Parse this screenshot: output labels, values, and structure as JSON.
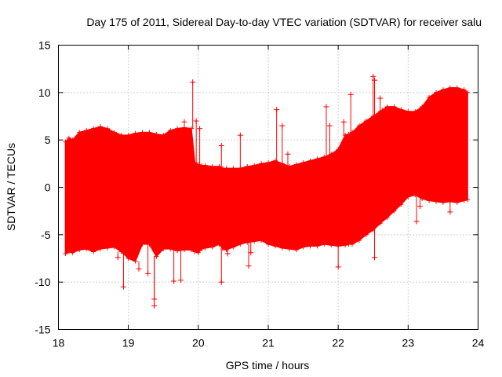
{
  "chart_data": {
    "type": "scatter",
    "title": "Day 175 of 2011, Sidereal Day-to-day VTEC variation (SDTVAR) for receiver salu",
    "xlabel": "GPS time / hours",
    "ylabel": "SDTVAR / TECUs",
    "xlim": [
      18,
      24
    ],
    "ylim": [
      -15,
      15
    ],
    "xticks": [
      "18",
      "19",
      "20",
      "21",
      "22",
      "23",
      "24"
    ],
    "yticks": [
      "-15",
      "-10",
      "-5",
      "0",
      "5",
      "10",
      "15"
    ],
    "grid": true,
    "legend": "none",
    "marker": "plus",
    "color": "#ff0000",
    "series": [
      {
        "name": "SDTVAR",
        "x": [
          18.1,
          18.15,
          18.2,
          18.3,
          18.4,
          18.5,
          18.6,
          18.7,
          18.8,
          18.9,
          19.0,
          19.1,
          19.2,
          19.3,
          19.4,
          19.5,
          19.6,
          19.7,
          19.8,
          19.9,
          19.95,
          20.0,
          20.05,
          20.1,
          20.2,
          20.3,
          20.35,
          20.4,
          20.5,
          20.6,
          20.7,
          20.8,
          20.9,
          21.0,
          21.1,
          21.2,
          21.3,
          21.4,
          21.5,
          21.6,
          21.7,
          21.8,
          21.9,
          22.0,
          22.1,
          22.15,
          22.2,
          22.3,
          22.4,
          22.5,
          22.6,
          22.7,
          22.8,
          22.9,
          23.0,
          23.1,
          23.2,
          23.3,
          23.4,
          23.5,
          23.6,
          23.7,
          23.8,
          23.85
        ],
        "upper": [
          4.8,
          5.2,
          5.0,
          5.8,
          6.0,
          6.2,
          6.4,
          6.2,
          5.8,
          5.5,
          5.5,
          5.7,
          5.8,
          5.8,
          5.6,
          5.5,
          6.0,
          6.2,
          6.3,
          6.2,
          2.6,
          2.4,
          2.3,
          2.3,
          2.2,
          2.2,
          2.0,
          2.0,
          2.0,
          2.0,
          2.2,
          2.3,
          2.5,
          2.6,
          2.8,
          2.5,
          2.2,
          2.4,
          2.6,
          2.8,
          3.0,
          3.2,
          3.5,
          4.0,
          5.5,
          5.6,
          5.8,
          6.5,
          7.0,
          7.5,
          8.0,
          8.5,
          8.5,
          8.2,
          8.0,
          8.0,
          8.5,
          9.5,
          10.0,
          10.3,
          10.5,
          10.5,
          10.3,
          10.0
        ],
        "lower": [
          -7.0,
          -6.8,
          -6.9,
          -6.6,
          -6.5,
          -6.8,
          -6.5,
          -6.4,
          -6.3,
          -6.8,
          -7.5,
          -7.8,
          -6.0,
          -6.0,
          -7.3,
          -6.5,
          -6.5,
          -6.7,
          -6.6,
          -6.6,
          -6.8,
          -6.9,
          -6.5,
          -6.4,
          -6.3,
          -6.0,
          -6.5,
          -6.6,
          -6.3,
          -6.0,
          -5.8,
          -5.7,
          -5.6,
          -6.0,
          -6.2,
          -6.4,
          -6.5,
          -6.6,
          -6.3,
          -6.2,
          -6.2,
          -6.0,
          -6.1,
          -6.2,
          -6.1,
          -6.0,
          -6.0,
          -5.6,
          -5.0,
          -4.5,
          -3.8,
          -3.2,
          -2.5,
          -1.8,
          -1.0,
          -0.8,
          -1.2,
          -1.4,
          -1.5,
          -1.6,
          -1.5,
          -1.6,
          -1.4,
          -1.3
        ],
        "outliers": [
          [
            18.85,
            -7.4
          ],
          [
            18.93,
            -10.5
          ],
          [
            19.15,
            -8.6
          ],
          [
            19.28,
            -9.1
          ],
          [
            19.37,
            -12.5
          ],
          [
            19.37,
            -11.8
          ],
          [
            19.65,
            -9.9
          ],
          [
            19.75,
            -9.8
          ],
          [
            19.8,
            6.9
          ],
          [
            19.92,
            11.1
          ],
          [
            19.97,
            7.0
          ],
          [
            20.02,
            6.2
          ],
          [
            20.33,
            4.4
          ],
          [
            20.33,
            -10.0
          ],
          [
            20.42,
            -7.0
          ],
          [
            20.6,
            5.5
          ],
          [
            20.72,
            -8.3
          ],
          [
            20.75,
            -6.9
          ],
          [
            21.12,
            8.2
          ],
          [
            21.2,
            6.5
          ],
          [
            21.28,
            3.5
          ],
          [
            21.83,
            8.5
          ],
          [
            21.88,
            6.5
          ],
          [
            22.0,
            -8.4
          ],
          [
            22.08,
            6.9
          ],
          [
            22.18,
            9.8
          ],
          [
            22.5,
            11.7
          ],
          [
            22.52,
            11.3
          ],
          [
            22.52,
            -7.4
          ],
          [
            22.6,
            9.4
          ],
          [
            22.63,
            8.1
          ],
          [
            22.7,
            6.5
          ],
          [
            23.12,
            -3.6
          ],
          [
            23.17,
            -2.0
          ],
          [
            23.6,
            -2.6
          ]
        ]
      }
    ]
  }
}
